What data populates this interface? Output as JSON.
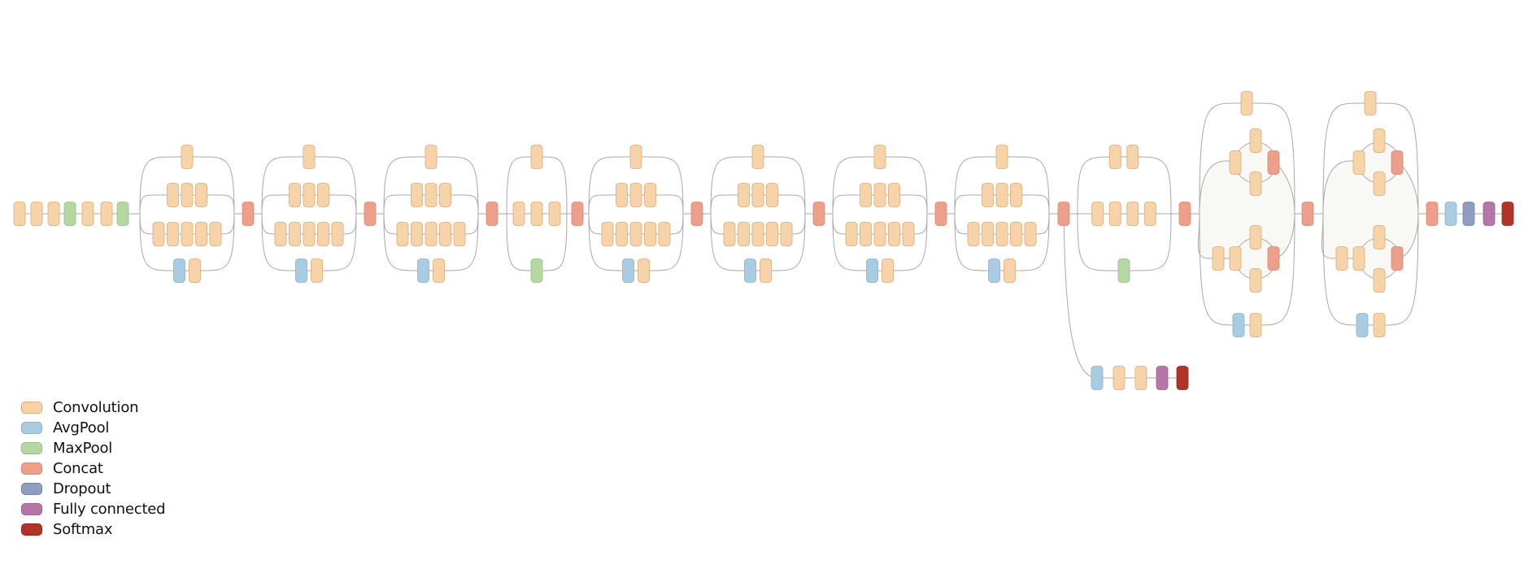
{
  "legend": [
    {
      "key": "conv",
      "label": "Convolution",
      "color": "#f6d3a8",
      "stroke": "#dfa97a"
    },
    {
      "key": "avgpool",
      "label": "AvgPool",
      "color": "#a9cce2",
      "stroke": "#8fb1c8"
    },
    {
      "key": "maxpool",
      "label": "MaxPool",
      "color": "#b5d8a3",
      "stroke": "#98bd88"
    },
    {
      "key": "concat",
      "label": "Concat",
      "color": "#eca08c",
      "stroke": "#d98772"
    },
    {
      "key": "dropout",
      "label": "Dropout",
      "color": "#8e9dc0",
      "stroke": "#7686aa"
    },
    {
      "key": "fc",
      "label": "Fully connected",
      "color": "#b776a8",
      "stroke": "#9c5e8e"
    },
    {
      "key": "softmax",
      "label": "Softmax",
      "color": "#b1332a",
      "stroke": "#922720"
    }
  ],
  "network": {
    "stem": [
      "conv",
      "conv",
      "conv",
      "maxpool",
      "conv",
      "conv",
      "maxpool"
    ],
    "modules": [
      {
        "type": "A",
        "branches": [
          [
            "conv"
          ],
          [
            "conv",
            "conv",
            "conv"
          ],
          [
            "conv",
            "conv",
            "conv",
            "conv",
            "conv"
          ],
          [
            "avgpool",
            "conv"
          ]
        ]
      },
      {
        "type": "A",
        "branches": [
          [
            "conv"
          ],
          [
            "conv",
            "conv",
            "conv"
          ],
          [
            "conv",
            "conv",
            "conv",
            "conv",
            "conv"
          ],
          [
            "avgpool",
            "conv"
          ]
        ]
      },
      {
        "type": "A",
        "branches": [
          [
            "conv"
          ],
          [
            "conv",
            "conv",
            "conv"
          ],
          [
            "conv",
            "conv",
            "conv",
            "conv",
            "conv"
          ],
          [
            "avgpool",
            "conv"
          ]
        ]
      },
      {
        "type": "B",
        "branches": [
          [
            "conv"
          ],
          [
            "conv",
            "conv",
            "conv"
          ],
          [
            "maxpool"
          ]
        ]
      },
      {
        "type": "A",
        "branches": [
          [
            "conv"
          ],
          [
            "conv",
            "conv",
            "conv"
          ],
          [
            "conv",
            "conv",
            "conv",
            "conv",
            "conv"
          ],
          [
            "avgpool",
            "conv"
          ]
        ]
      },
      {
        "type": "A",
        "branches": [
          [
            "conv"
          ],
          [
            "conv",
            "conv",
            "conv"
          ],
          [
            "conv",
            "conv",
            "conv",
            "conv",
            "conv"
          ],
          [
            "avgpool",
            "conv"
          ]
        ]
      },
      {
        "type": "A",
        "branches": [
          [
            "conv"
          ],
          [
            "conv",
            "conv",
            "conv"
          ],
          [
            "conv",
            "conv",
            "conv",
            "conv",
            "conv"
          ],
          [
            "avgpool",
            "conv"
          ]
        ]
      },
      {
        "type": "A",
        "branches": [
          [
            "conv"
          ],
          [
            "conv",
            "conv",
            "conv"
          ],
          [
            "conv",
            "conv",
            "conv",
            "conv",
            "conv"
          ],
          [
            "avgpool",
            "conv"
          ]
        ]
      },
      {
        "type": "D",
        "branches": [
          [
            "conv",
            "conv"
          ],
          [
            "conv",
            "conv",
            "conv",
            "conv"
          ],
          [
            "maxpool"
          ]
        ]
      },
      {
        "type": "E",
        "branches": [
          [
            "conv"
          ],
          [
            "conv",
            "conv",
            "conv",
            "concat"
          ],
          [
            "conv",
            "conv",
            "conv",
            "conv",
            "concat"
          ],
          [
            "avgpool",
            "conv"
          ]
        ]
      },
      {
        "type": "E",
        "branches": [
          [
            "conv"
          ],
          [
            "conv",
            "conv",
            "conv",
            "concat"
          ],
          [
            "conv",
            "conv",
            "conv",
            "conv",
            "concat"
          ],
          [
            "avgpool",
            "conv"
          ]
        ]
      }
    ],
    "head": [
      "avgpool",
      "dropout",
      "fc",
      "softmax"
    ],
    "auxiliary_head": {
      "branches_from_module": 8,
      "layers": [
        "avgpool",
        "conv",
        "conv",
        "fc",
        "softmax"
      ]
    }
  }
}
